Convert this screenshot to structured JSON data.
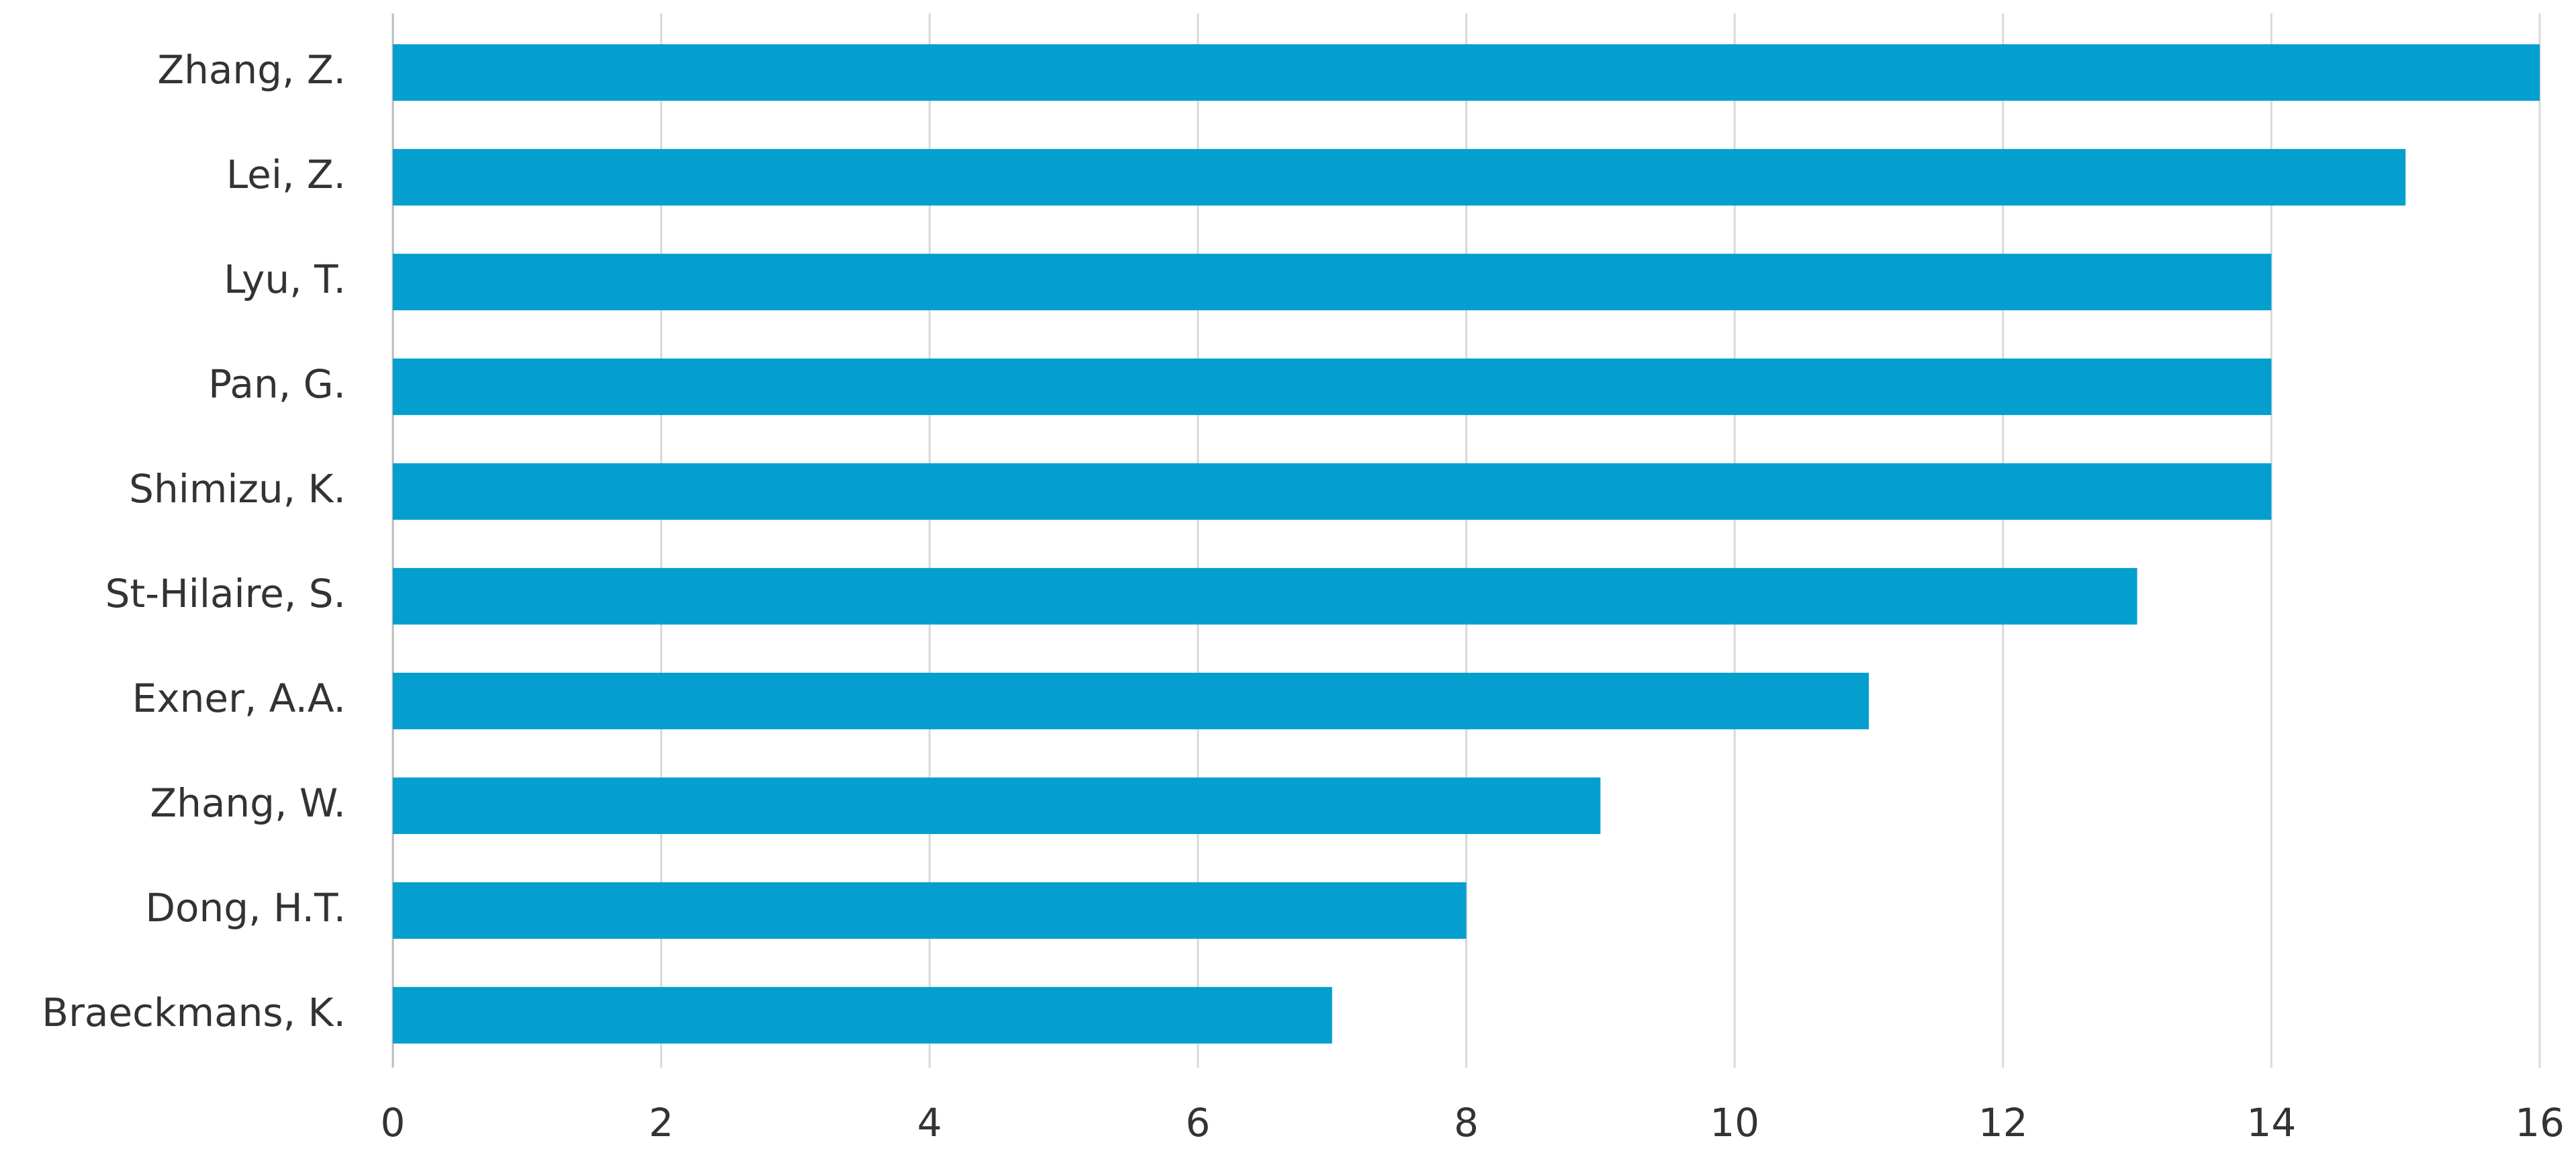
{
  "chart_data": {
    "type": "barh",
    "categories": [
      "Zhang, Z.",
      "Lei, Z.",
      "Lyu, T.",
      "Pan, G.",
      "Shimizu, K.",
      "St-Hilaire, S.",
      "Exner, A.A.",
      "Zhang, W.",
      "Dong, H.T.",
      "Braeckmans, K."
    ],
    "values": [
      16,
      15,
      14,
      14,
      14,
      13,
      11,
      9,
      8,
      7
    ],
    "color": "#049fcf",
    "xlim": [
      0,
      16
    ],
    "xticks": [
      0,
      2,
      4,
      6,
      8,
      10,
      12,
      14,
      16
    ],
    "grid": true
  }
}
